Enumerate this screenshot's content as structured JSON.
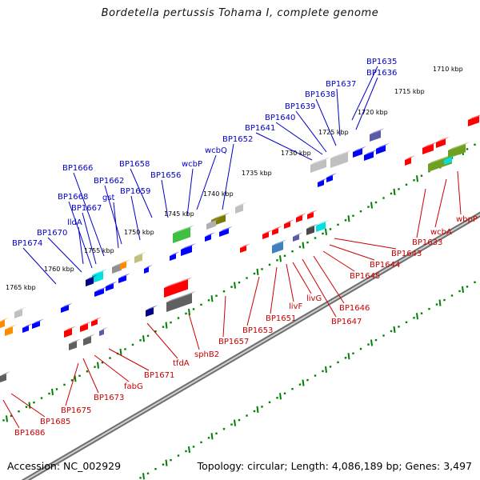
{
  "title": "Bordetella pertussis Tohama I, complete genome",
  "footer": {
    "accession": "Accession: NC_002929",
    "info": "Topology: circular; Length: 4,086,189 bp; Genes: 3,497"
  },
  "colors": {
    "forward_label": "#0000c8",
    "reverse_label": "#cc0000",
    "tick": "#008000",
    "backbone": "#909090"
  },
  "scale_labels": [
    "1710 kbp",
    "1715 kbp",
    "1720 kbp",
    "1725 kbp",
    "1730 kbp",
    "1735 kbp",
    "1740 kbp",
    "1745 kbp",
    "1750 kbp",
    "1755 kbp",
    "1760 kbp",
    "1765 kbp"
  ],
  "forward_genes": [
    "BP1635",
    "BP1636",
    "BP1637",
    "BP1638",
    "BP1639",
    "BP1640",
    "BP1641",
    "BP1652",
    "wcbQ",
    "wcbP",
    "BP1656",
    "BP1658",
    "BP1659",
    "BP1662",
    "gst",
    "BP1666",
    "BP1667",
    "BP1668",
    "lldA",
    "BP1670",
    "BP1674"
  ],
  "reverse_genes": [
    "wbpP",
    "wcbA",
    "BP1633",
    "BP1643",
    "BP1644",
    "BP1645",
    "BP1646",
    "BP1647",
    "livG",
    "livF",
    "BP1651",
    "BP1653",
    "BP1657",
    "sphB2",
    "tfdA",
    "BP1671",
    "fabG",
    "BP1673",
    "BP1675",
    "BP1685",
    "BP1686"
  ]
}
